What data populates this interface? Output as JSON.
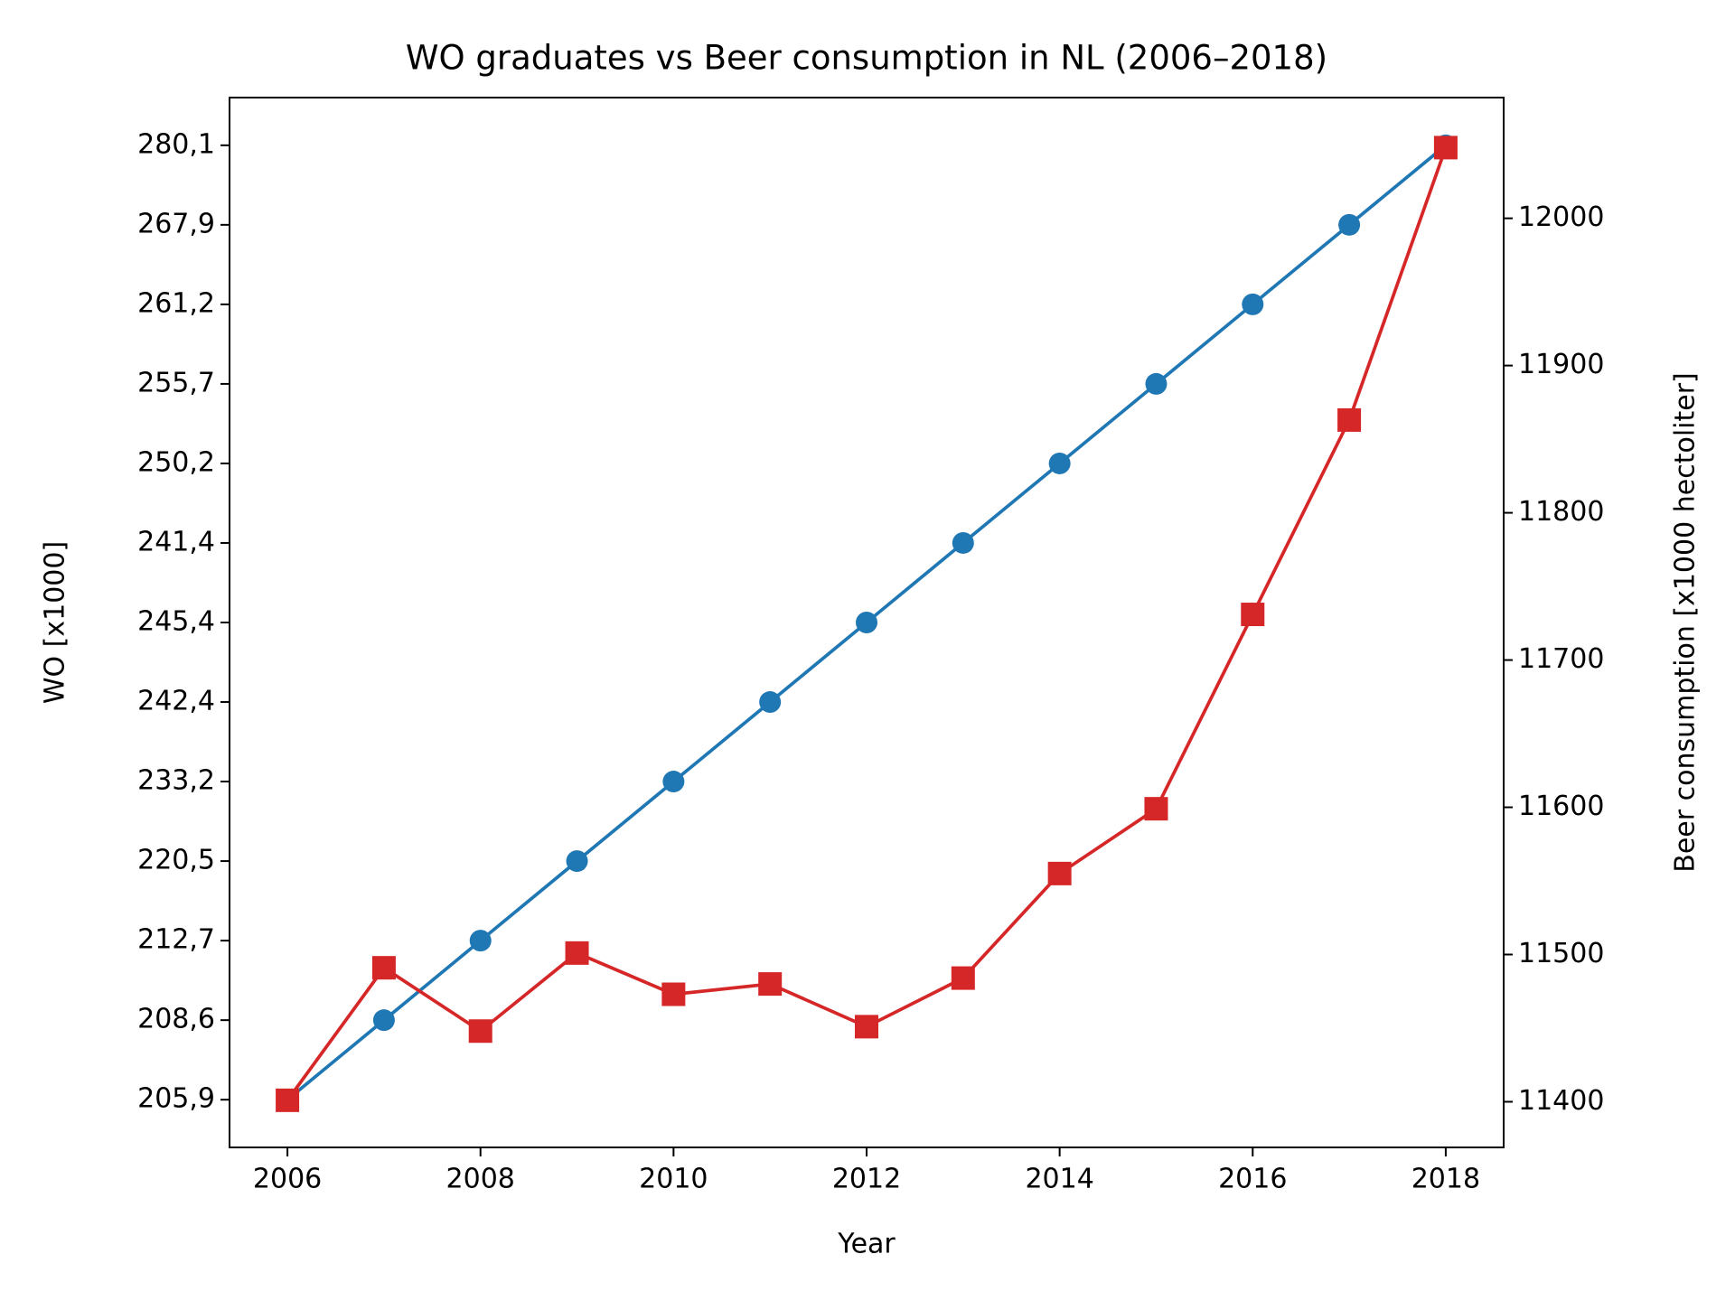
{
  "chart_data": {
    "type": "line",
    "title": "WO graduates vs Beer consumption in NL (2006–2018)",
    "x_label": "Year",
    "y_label": "WO [x1000]",
    "y2_label": "Beer consumption [x1000 hectoliter]",
    "x": [
      2006,
      2007,
      2008,
      2009,
      2010,
      2011,
      2012,
      2013,
      2014,
      2015,
      2016,
      2017,
      2018
    ],
    "xlim": [
      2005.4,
      2018.6
    ],
    "xticks": [
      2006,
      2008,
      2010,
      2012,
      2014,
      2016,
      2018
    ],
    "ycategories": [
      "205,9",
      "208,6",
      "212,7",
      "220,5",
      "233,2",
      "242,4",
      "245,4",
      "241,4",
      "250,2",
      "255,7",
      "261,2",
      "267,9",
      "280,1"
    ],
    "y2lim": [
      11369,
      12082
    ],
    "y2ticks": [
      11400,
      11500,
      11600,
      11700,
      11800,
      11900,
      12000
    ],
    "series": [
      {
        "color": "#1f77b4",
        "marker": "circle",
        "values": [
          205.9,
          208.6,
          212.7,
          220.5,
          233.2,
          242.4,
          245.4,
          241.4,
          250.2,
          255.7,
          261.2,
          267.9,
          280.1
        ]
      },
      {
        "color": "#d62728",
        "marker": "square",
        "axis": "y2",
        "values": [
          11401,
          11491,
          11448,
          11501,
          11473,
          11480,
          11451,
          11484,
          11555,
          11599,
          11731,
          11863,
          12048
        ]
      }
    ]
  }
}
